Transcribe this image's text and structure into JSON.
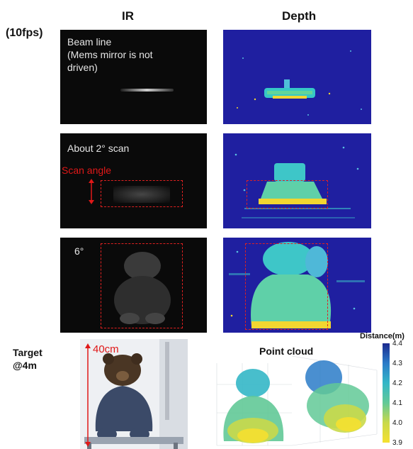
{
  "headers": {
    "ir": "IR",
    "depth": "Depth",
    "fps": "(10fps)"
  },
  "row1": {
    "ir_text": [
      "Beam line",
      "(Mems mirror is not",
      "driven)"
    ]
  },
  "row2": {
    "ir_text": "About 2° scan",
    "scan_angle_label": "Scan angle"
  },
  "row3": {
    "ir_text": "6°"
  },
  "target": {
    "label_line1": "Target",
    "label_line2": "@4m",
    "size_label": "40cm"
  },
  "pointcloud": {
    "title": "Point cloud",
    "colorbar_title": "Distance(m)",
    "colorbar_ticks": [
      "4.4",
      "4.3",
      "4.2",
      "4.1",
      "4.0",
      "3.9"
    ],
    "colorbar_colors": [
      "#1c2a8f",
      "#2a7bc8",
      "#34b7c7",
      "#62c997",
      "#c9d94a",
      "#f5e030"
    ]
  },
  "colors": {
    "ir_bg": "#0a0a0a",
    "depth_bg": "#1f1fa0",
    "accent_red": "#e01818"
  }
}
